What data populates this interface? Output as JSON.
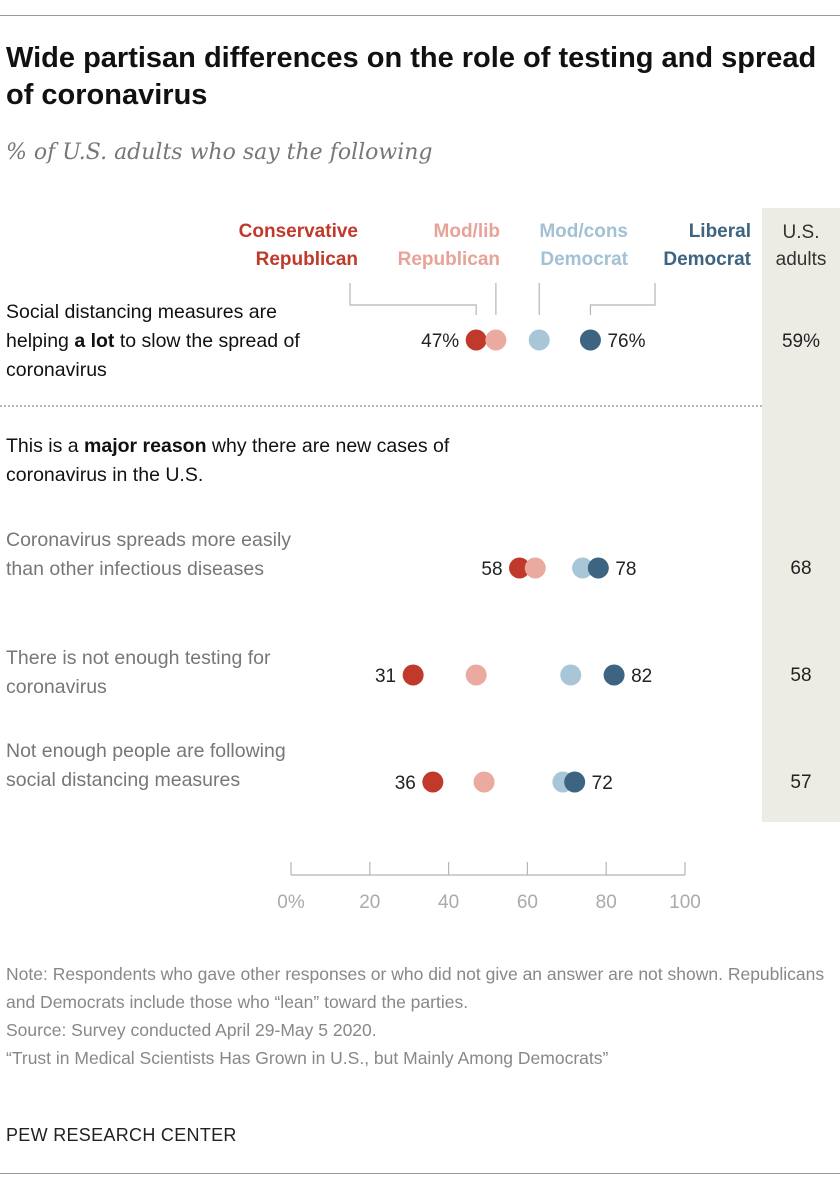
{
  "title": "Wide partisan differences on the role of testing and spread of coronavirus",
  "subtitle": "% of U.S. adults who say the following",
  "colors": {
    "conservative_republican": "#c0392b",
    "modlib_republican": "#ebaaa0",
    "modcons_democrat": "#a9c6d8",
    "liberal_democrat": "#3d6480",
    "us_band": "#ecebe4"
  },
  "legend": {
    "conservative_republican": [
      "Conservative",
      "Republican"
    ],
    "modlib_republican": [
      "Mod/lib",
      "Republican"
    ],
    "modcons_democrat": [
      "Mod/cons",
      "Democrat"
    ],
    "liberal_democrat": [
      "Liberal",
      "Democrat"
    ],
    "us_adults": [
      "U.S.",
      "adults"
    ]
  },
  "rows": {
    "social_distancing": {
      "pre": "Social distancing measures are helping ",
      "bold": "a lot",
      "post": " to slow the spread of coronavirus"
    },
    "section_heading": {
      "pre": "This is a ",
      "bold": "major reason",
      "post": " why there are new cases of coronavirus in the U.S."
    },
    "spreads_easily": "Coronavirus spreads more easily than other infectious diseases",
    "not_enough_testing": "There is not enough testing for coronavirus",
    "not_following": "Not enough people are following social distancing measures"
  },
  "chart_data": {
    "type": "scatter",
    "xlim": [
      0,
      100
    ],
    "x_ticks": [
      "0%",
      "20",
      "40",
      "60",
      "80",
      "100"
    ],
    "series_order": [
      "Conservative Republican",
      "Mod/lib Republican",
      "Mod/cons Democrat",
      "Liberal Democrat"
    ],
    "rows": [
      {
        "label": "Social distancing measures are helping a lot to slow the spread of coronavirus",
        "values": [
          47,
          52,
          63,
          76
        ],
        "left_label": "47%",
        "right_label": "76%",
        "us_adults": "59%"
      },
      {
        "label": "Coronavirus spreads more easily than other infectious diseases",
        "values": [
          58,
          62,
          74,
          78
        ],
        "left_label": "58",
        "right_label": "78",
        "us_adults": "68"
      },
      {
        "label": "There is not enough testing for coronavirus",
        "values": [
          31,
          47,
          71,
          82
        ],
        "left_label": "31",
        "right_label": "82",
        "us_adults": "58"
      },
      {
        "label": "Not enough people are following social distancing measures",
        "values": [
          36,
          49,
          69,
          72
        ],
        "left_label": "36",
        "right_label": "72",
        "us_adults": "57"
      }
    ]
  },
  "notes": {
    "note": "Note: Respondents who gave other responses or who did not give an answer are not shown. Republicans and Democrats include those who “lean” toward the parties.",
    "source": "Source: Survey conducted April 29-May 5 2020.",
    "report": "“Trust in Medical Scientists Has Grown in U.S., but Mainly Among Democrats”"
  },
  "footer": "PEW RESEARCH CENTER"
}
